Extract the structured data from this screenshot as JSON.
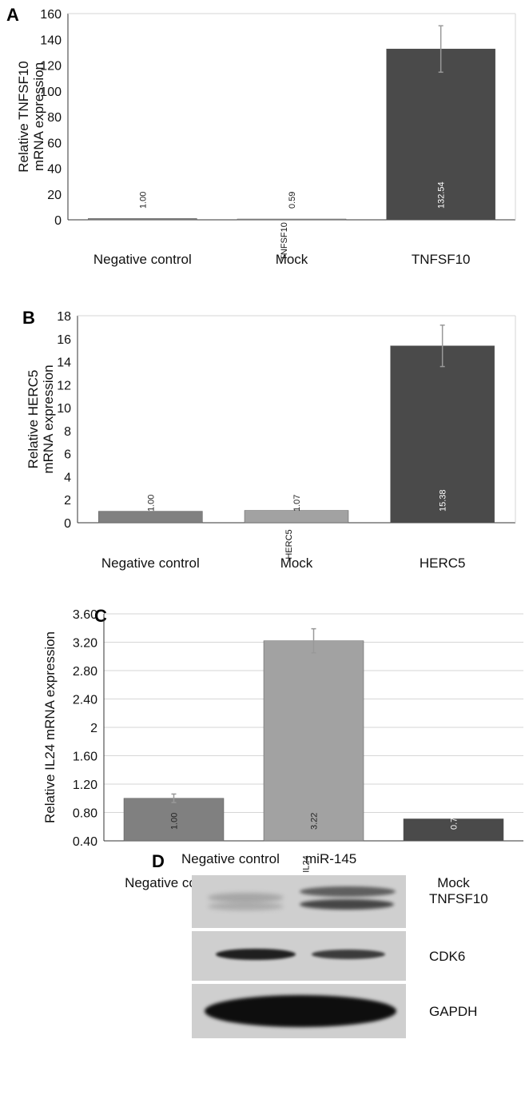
{
  "chart_data": [
    {
      "panel": "A",
      "type": "bar",
      "categories": [
        "Negative control",
        "Mock",
        "TNFSF10"
      ],
      "values": [
        1.0,
        0.59,
        132.54
      ],
      "errors": [
        0,
        0,
        18
      ],
      "data_labels": [
        "1.00",
        "0.59",
        "132.54"
      ],
      "bar_tags": [
        "",
        "TNFSF10",
        ""
      ],
      "colors": [
        "#808080",
        "#a2a2a2",
        "#4a4a4a"
      ],
      "ylabel": [
        "Relative TNFSF10",
        "mRNA expression"
      ],
      "ylim": [
        0,
        160
      ],
      "yticks": [
        "0",
        "20",
        "40",
        "60",
        "80",
        "100",
        "120",
        "140",
        "160"
      ],
      "grid": false
    },
    {
      "panel": "B",
      "type": "bar",
      "categories": [
        "Negative control",
        "Mock",
        "HERC5"
      ],
      "values": [
        1.0,
        1.07,
        15.38
      ],
      "errors": [
        0,
        0,
        1.8
      ],
      "data_labels": [
        "1.00",
        "1.07",
        "15.38"
      ],
      "bar_tags": [
        "",
        "HERC5",
        ""
      ],
      "colors": [
        "#808080",
        "#a2a2a2",
        "#4a4a4a"
      ],
      "ylabel": [
        "Relative HERC5",
        "mRNA expression"
      ],
      "ylim": [
        0,
        18
      ],
      "yticks": [
        "0",
        "2",
        "4",
        "6",
        "8",
        "10",
        "12",
        "14",
        "16",
        "18"
      ],
      "grid": false
    },
    {
      "panel": "C",
      "type": "bar",
      "categories": [
        "Negative control",
        "IL24",
        "Mock"
      ],
      "values": [
        1.0,
        3.22,
        0.71
      ],
      "errors": [
        0.06,
        0.17,
        0
      ],
      "data_labels": [
        "1.00",
        "3.22",
        "0.71"
      ],
      "bar_tags": [
        "",
        "IL24",
        ""
      ],
      "colors": [
        "#808080",
        "#a2a2a2",
        "#4a4a4a"
      ],
      "ylabel": [
        "Relative IL24 mRNA expression"
      ],
      "ylim": [
        0.4,
        3.6
      ],
      "yticks": [
        "0.40",
        "0.80",
        "1.20",
        "1.60",
        "2",
        "2.40",
        "2.80",
        "3.20",
        "3.60"
      ],
      "grid": true
    }
  ],
  "blot": {
    "panel": "D",
    "columns": [
      "Negative control",
      "miR-145"
    ],
    "rows": [
      {
        "name": "TNFSF10",
        "intensities": [
          0.35,
          0.85
        ]
      },
      {
        "name": "CDK6",
        "intensities": [
          0.95,
          0.8
        ]
      },
      {
        "name": "GAPDH",
        "intensities": [
          1.0,
          1.0
        ]
      }
    ]
  }
}
